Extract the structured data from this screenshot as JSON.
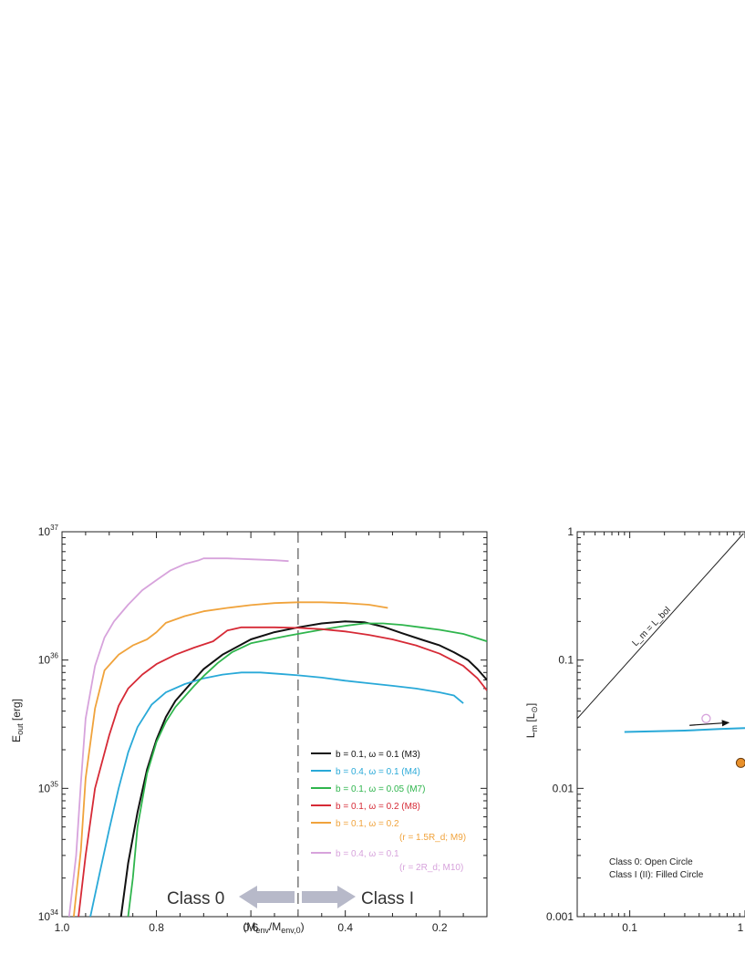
{
  "chart_data": [
    {
      "type": "line",
      "title": "",
      "xlabel": "(M_env/M_env,0)",
      "ylabel": "E_out [erg]",
      "x_axis": {
        "reversed": true,
        "xlim": [
          1.0,
          0.1
        ],
        "tick_values": [
          1.0,
          0.8,
          0.6,
          0.4,
          0.2
        ],
        "tick_labels": [
          "1.0",
          "0.8",
          "0.6",
          "0.4",
          "0.2"
        ]
      },
      "y_axis": {
        "scale": "log",
        "ylim": [
          1e+34,
          1e+37
        ],
        "tick_values": [
          1e+34,
          1e+35,
          1e+36,
          1e+37
        ],
        "tick_exponents": [
          "34",
          "35",
          "36",
          "37"
        ],
        "tick_base": "10"
      },
      "grid": false,
      "legend_placement": "lower-right",
      "divider": {
        "x": 0.5,
        "style": "dashed"
      },
      "class_labels": {
        "left": "Class 0",
        "right": "Class I"
      },
      "series": [
        {
          "key": "M3",
          "color": "#111111",
          "legend": [
            "b = 0.1, ω = 0.1 (M3)"
          ],
          "x": [
            0.875,
            0.86,
            0.84,
            0.82,
            0.8,
            0.78,
            0.76,
            0.73,
            0.7,
            0.66,
            0.6,
            0.55,
            0.5,
            0.45,
            0.4,
            0.36,
            0.32,
            0.28,
            0.24,
            0.2,
            0.17,
            0.14,
            0.12,
            0.1
          ],
          "y": [
            1e+34,
            2.6e+34,
            6.5e+34,
            1.4e+35,
            2.4e+35,
            3.6e+35,
            4.8e+35,
            6.4e+35,
            8.5e+35,
            1.1e+36,
            1.45e+36,
            1.65e+36,
            1.8e+36,
            1.93e+36,
            2e+36,
            1.97e+36,
            1.82e+36,
            1.62e+36,
            1.45e+36,
            1.3e+36,
            1.15e+36,
            1e+36,
            8.5e+35,
            7e+35
          ]
        },
        {
          "key": "M4",
          "color": "#29a9d8",
          "legend": [
            "b = 0.4, ω = 0.1 (M4)"
          ],
          "x": [
            0.94,
            0.92,
            0.9,
            0.88,
            0.86,
            0.84,
            0.81,
            0.78,
            0.74,
            0.7,
            0.66,
            0.62,
            0.58,
            0.54,
            0.5,
            0.45,
            0.4,
            0.35,
            0.3,
            0.25,
            0.2,
            0.17,
            0.15
          ],
          "y": [
            1e+34,
            2.2e+34,
            4.8e+34,
            1e+35,
            1.9e+35,
            3e+35,
            4.5e+35,
            5.6e+35,
            6.5e+35,
            7.2e+35,
            7.7e+35,
            8e+35,
            8e+35,
            7.8e+35,
            7.6e+35,
            7.3e+35,
            6.9e+35,
            6.6e+35,
            6.3e+35,
            6e+35,
            5.6e+35,
            5.3e+35,
            4.6e+35
          ]
        },
        {
          "key": "M7",
          "color": "#2fb54d",
          "legend": [
            "b = 0.1, ω = 0.05 (M7)"
          ],
          "x": [
            0.86,
            0.85,
            0.84,
            0.82,
            0.8,
            0.78,
            0.76,
            0.74,
            0.72,
            0.7,
            0.67,
            0.64,
            0.6,
            0.56,
            0.52,
            0.48,
            0.44,
            0.4,
            0.36,
            0.32,
            0.28,
            0.24,
            0.2,
            0.15,
            0.1
          ],
          "y": [
            1e+34,
            2e+34,
            5e+34,
            1.3e+35,
            2.3e+35,
            3.3e+35,
            4.3e+35,
            5.2e+35,
            6.3e+35,
            7.5e+35,
            9.5e+35,
            1.15e+36,
            1.35e+36,
            1.45e+36,
            1.55e+36,
            1.65e+36,
            1.75e+36,
            1.85e+36,
            1.93e+36,
            1.93e+36,
            1.88e+36,
            1.8e+36,
            1.72e+36,
            1.6e+36,
            1.4e+36
          ]
        },
        {
          "key": "M8",
          "color": "#d62a36",
          "legend": [
            "b = 0.1, ω = 0.2 (M8)"
          ],
          "x": [
            0.965,
            0.95,
            0.93,
            0.9,
            0.88,
            0.86,
            0.83,
            0.8,
            0.76,
            0.72,
            0.68,
            0.65,
            0.62,
            0.55,
            0.5,
            0.45,
            0.4,
            0.35,
            0.3,
            0.25,
            0.2,
            0.15,
            0.12,
            0.1
          ],
          "y": [
            1e+34,
            3e+34,
            1e+35,
            2.6e+35,
            4.4e+35,
            6e+35,
            7.7e+35,
            9.3e+35,
            1.1e+36,
            1.25e+36,
            1.4e+36,
            1.7e+36,
            1.8e+36,
            1.8e+36,
            1.78e+36,
            1.74e+36,
            1.67e+36,
            1.57e+36,
            1.45e+36,
            1.3e+36,
            1.12e+36,
            9e+35,
            7.2e+35,
            5.8e+35
          ]
        },
        {
          "key": "M9",
          "color": "#f0a33c",
          "legend": [
            "b = 0.1, ω = 0.2",
            "(r = 1.5R_d; M9)"
          ],
          "x": [
            0.975,
            0.96,
            0.95,
            0.93,
            0.91,
            0.88,
            0.85,
            0.82,
            0.8,
            0.78,
            0.74,
            0.7,
            0.65,
            0.6,
            0.55,
            0.5,
            0.45,
            0.4,
            0.35,
            0.31
          ],
          "y": [
            1e+34,
            3.3e+34,
            1.2e+35,
            4.2e+35,
            8.3e+35,
            1.1e+36,
            1.3e+36,
            1.45e+36,
            1.65e+36,
            1.95e+36,
            2.2e+36,
            2.4e+36,
            2.55e+36,
            2.68e+36,
            2.78e+36,
            2.82e+36,
            2.82e+36,
            2.78e+36,
            2.7e+36,
            2.55e+36
          ]
        },
        {
          "key": "M10",
          "color": "#d7a3dc",
          "legend": [
            "b = 0.4, ω = 0.1",
            "(r = 2R_d; M10)"
          ],
          "x": [
            0.985,
            0.97,
            0.96,
            0.95,
            0.93,
            0.91,
            0.89,
            0.86,
            0.83,
            0.8,
            0.77,
            0.74,
            0.71,
            0.7,
            0.65,
            0.6,
            0.55,
            0.52
          ],
          "y": [
            1e+34,
            3e+34,
            1.1e+35,
            3.5e+35,
            9e+35,
            1.5e+36,
            2e+36,
            2.7e+36,
            3.5e+36,
            4.2e+36,
            5e+36,
            5.6e+36,
            6e+36,
            6.2e+36,
            6.2e+36,
            6.1e+36,
            6e+36,
            5.9e+36
          ]
        }
      ]
    },
    {
      "type": "line",
      "title": "",
      "xlabel": "",
      "ylabel": "L_m [L_⊙]",
      "x_axis": {
        "scale": "log",
        "xlim": [
          0.035,
          1.0
        ],
        "tick_values": [
          0.1,
          1
        ],
        "tick_labels": [
          "0.1",
          "1"
        ]
      },
      "y_axis": {
        "scale": "log",
        "ylim": [
          0.001,
          1
        ],
        "tick_values": [
          0.001,
          0.01,
          0.1,
          1
        ],
        "tick_labels": [
          "0.001",
          "0.01",
          "0.1",
          "1"
        ]
      },
      "grid": false,
      "reference_line": {
        "label": "L_m = L_bol",
        "x": [
          0.035,
          0.97
        ],
        "y": [
          0.035,
          0.97
        ],
        "color": "#222222"
      },
      "series": [
        {
          "name": "",
          "color": "#29a9d8",
          "x": [
            0.09,
            0.3,
            0.6,
            1.0
          ],
          "y": [
            0.0275,
            0.0282,
            0.029,
            0.0295
          ]
        }
      ],
      "markers": [
        {
          "kind": "open-circle",
          "color": "#d7a3dc",
          "x": 0.46,
          "y": 0.035
        },
        {
          "kind": "filled-circle",
          "color": "#e8902a",
          "x": 0.92,
          "y": 0.0158
        }
      ],
      "arrow": {
        "from": [
          0.33,
          0.031
        ],
        "to": [
          0.72,
          0.0325
        ],
        "color": "#111111"
      },
      "notes": [
        "Class 0: Open Circle",
        "Class I (II): Filled Circle"
      ]
    }
  ]
}
